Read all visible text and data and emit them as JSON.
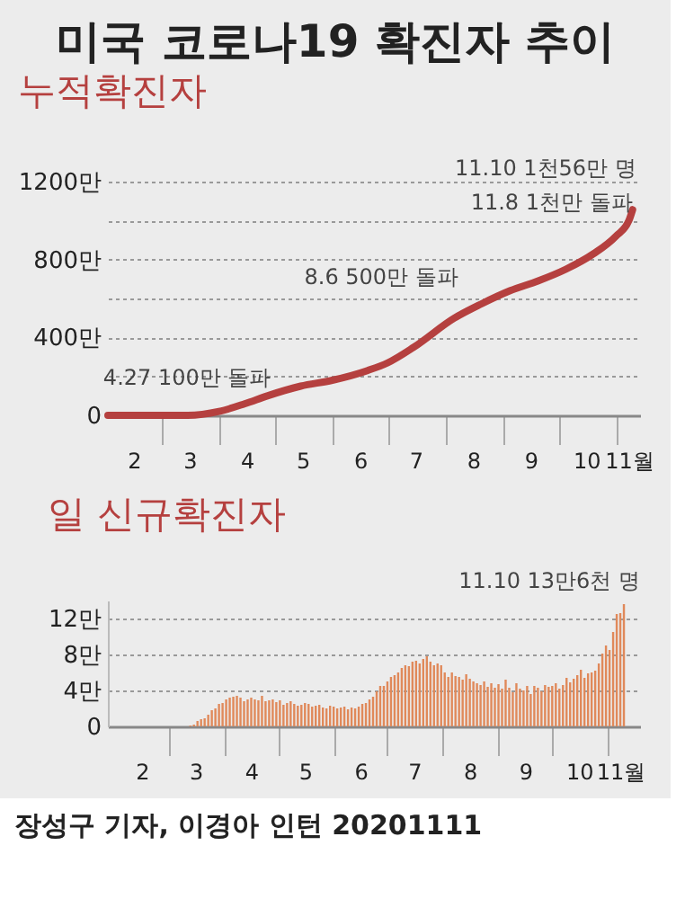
{
  "chart_data": [
    {
      "type": "line",
      "title": "미국 코로나19 확진자 추이",
      "subtitle": "누적확진자",
      "color": "#b5403f",
      "x": [
        "2020-02-01",
        "2020-03-01",
        "2020-03-15",
        "2020-04-01",
        "2020-04-15",
        "2020-04-27",
        "2020-05-15",
        "2020-06-01",
        "2020-06-20",
        "2020-07-01",
        "2020-07-15",
        "2020-08-06",
        "2020-08-20",
        "2020-09-05",
        "2020-09-20",
        "2020-10-05",
        "2020-10-20",
        "2020-11-01",
        "2020-11-08",
        "2020-11-10"
      ],
      "values": [
        0,
        0,
        0,
        20,
        60,
        100,
        150,
        180,
        230,
        270,
        350,
        500,
        570,
        640,
        690,
        750,
        830,
        920,
        1000,
        1056
      ],
      "xlim": [
        "2020-02-01",
        "2020-11-14"
      ],
      "xticks": [
        {
          "value": "2020-02-15",
          "label": "2"
        },
        {
          "value": "2020-03-01",
          "label": null
        },
        {
          "value": "2020-03-16",
          "label": "3"
        },
        {
          "value": "2020-04-01",
          "label": null
        },
        {
          "value": "2020-04-16",
          "label": "4"
        },
        {
          "value": "2020-05-01",
          "label": null
        },
        {
          "value": "2020-05-16",
          "label": "5"
        },
        {
          "value": "2020-06-01",
          "label": null
        },
        {
          "value": "2020-06-16",
          "label": "6"
        },
        {
          "value": "2020-07-01",
          "label": null
        },
        {
          "value": "2020-07-16",
          "label": "7"
        },
        {
          "value": "2020-08-01",
          "label": null
        },
        {
          "value": "2020-08-16",
          "label": "8"
        },
        {
          "value": "2020-09-01",
          "label": null
        },
        {
          "value": "2020-09-16",
          "label": "9"
        },
        {
          "value": "2020-10-01",
          "label": null
        },
        {
          "value": "2020-10-16",
          "label": "10"
        },
        {
          "value": "2020-11-01",
          "label": null
        },
        {
          "value": "2020-11-08",
          "label": "11월"
        }
      ],
      "ylim": [
        0,
        1200
      ],
      "yticks": [
        0,
        {
          "value": 200,
          "label": null
        },
        {
          "value": 400,
          "label": "400만"
        },
        {
          "value": 600,
          "label": null
        },
        {
          "value": 800,
          "label": "800만"
        },
        {
          "value": 1000,
          "label": null
        },
        {
          "value": 1200,
          "label": "1200만"
        }
      ],
      "grid": "y",
      "annotations": [
        {
          "text": "4.27 100만 돌파",
          "x": "2020-04-27",
          "y": 100
        },
        {
          "text": "8.6 500만 돌파",
          "x": "2020-08-06",
          "y": 500
        },
        {
          "text": "11.8 1천만 돌파",
          "x": "2020-11-08",
          "y": 1000
        },
        {
          "text": "11.10 1천56만 명",
          "x": "2020-11-10",
          "y": 1056
        }
      ]
    },
    {
      "type": "bar",
      "title": "일 신규확진자",
      "color": "#e0895a",
      "x": [
        "2020-03-01",
        "2020-03-03",
        "2020-03-05",
        "2020-03-07",
        "2020-03-09",
        "2020-03-11",
        "2020-03-13",
        "2020-03-15",
        "2020-03-17",
        "2020-03-19",
        "2020-03-21",
        "2020-03-23",
        "2020-03-25",
        "2020-03-27",
        "2020-03-29",
        "2020-03-31",
        "2020-04-02",
        "2020-04-04",
        "2020-04-06",
        "2020-04-08",
        "2020-04-10",
        "2020-04-12",
        "2020-04-14",
        "2020-04-16",
        "2020-04-18",
        "2020-04-20",
        "2020-04-22",
        "2020-04-24",
        "2020-04-26",
        "2020-04-28",
        "2020-04-30",
        "2020-05-02",
        "2020-05-04",
        "2020-05-06",
        "2020-05-08",
        "2020-05-10",
        "2020-05-12",
        "2020-05-14",
        "2020-05-16",
        "2020-05-18",
        "2020-05-20",
        "2020-05-22",
        "2020-05-24",
        "2020-05-26",
        "2020-05-28",
        "2020-05-30",
        "2020-06-01",
        "2020-06-03",
        "2020-06-05",
        "2020-06-07",
        "2020-06-09",
        "2020-06-11",
        "2020-06-13",
        "2020-06-15",
        "2020-06-17",
        "2020-06-19",
        "2020-06-21",
        "2020-06-23",
        "2020-06-25",
        "2020-06-27",
        "2020-06-29",
        "2020-07-01",
        "2020-07-03",
        "2020-07-05",
        "2020-07-07",
        "2020-07-09",
        "2020-07-11",
        "2020-07-13",
        "2020-07-15",
        "2020-07-17",
        "2020-07-19",
        "2020-07-21",
        "2020-07-23",
        "2020-07-25",
        "2020-07-27",
        "2020-07-29",
        "2020-07-31",
        "2020-08-02",
        "2020-08-04",
        "2020-08-06",
        "2020-08-08",
        "2020-08-10",
        "2020-08-12",
        "2020-08-14",
        "2020-08-16",
        "2020-08-18",
        "2020-08-20",
        "2020-08-22",
        "2020-08-24",
        "2020-08-26",
        "2020-08-28",
        "2020-08-30",
        "2020-09-01",
        "2020-09-03",
        "2020-09-05",
        "2020-09-07",
        "2020-09-09",
        "2020-09-11",
        "2020-09-13",
        "2020-09-15",
        "2020-09-17",
        "2020-09-19",
        "2020-09-21",
        "2020-09-23",
        "2020-09-25",
        "2020-09-27",
        "2020-09-29",
        "2020-10-01",
        "2020-10-03",
        "2020-10-05",
        "2020-10-07",
        "2020-10-09",
        "2020-10-11",
        "2020-10-13",
        "2020-10-15",
        "2020-10-17",
        "2020-10-19",
        "2020-10-21",
        "2020-10-23",
        "2020-10-25",
        "2020-10-27",
        "2020-10-29",
        "2020-10-31",
        "2020-11-02",
        "2020-11-04",
        "2020-11-06",
        "2020-11-08",
        "2020-11-10"
      ],
      "values": [
        0,
        0,
        0,
        0,
        0,
        0,
        0.1,
        0.2,
        0.6,
        0.8,
        0.9,
        1.3,
        1.8,
        2.0,
        2.5,
        2.6,
        3.0,
        3.2,
        3.3,
        3.4,
        3.2,
        2.8,
        3.0,
        3.2,
        3.0,
        2.9,
        3.4,
        2.8,
        2.9,
        3.0,
        2.7,
        2.9,
        2.4,
        2.6,
        2.8,
        2.5,
        2.3,
        2.4,
        2.6,
        2.5,
        2.2,
        2.3,
        2.4,
        2.1,
        2.0,
        2.3,
        2.2,
        2.0,
        2.1,
        2.2,
        1.9,
        2.1,
        2.0,
        2.2,
        2.5,
        2.6,
        3.0,
        3.3,
        3.9,
        4.5,
        4.5,
        5.0,
        5.5,
        5.7,
        6.0,
        6.5,
        6.8,
        6.7,
        7.2,
        7.3,
        7.0,
        7.5,
        7.8,
        7.2,
        6.8,
        7.0,
        6.8,
        6.0,
        5.5,
        6.0,
        5.6,
        5.5,
        5.2,
        5.8,
        5.3,
        5.0,
        4.8,
        4.6,
        5.0,
        4.4,
        4.8,
        4.3,
        4.7,
        4.2,
        5.2,
        4.3,
        3.8,
        4.8,
        4.2,
        4.0,
        4.5,
        3.6,
        4.5,
        4.3,
        3.9,
        4.6,
        4.4,
        4.5,
        4.8,
        4.2,
        4.6,
        5.4,
        4.9,
        5.3,
        5.7,
        6.3,
        5.4,
        5.9,
        6.0,
        6.2,
        7.0,
        8.1,
        9.0,
        8.5,
        10.5,
        12.5,
        12.6,
        13.6
      ],
      "xlim": [
        "2020-02-01",
        "2020-11-14"
      ],
      "xticks": [
        {
          "value": "2020-02-15",
          "label": "2"
        },
        {
          "value": "2020-03-01",
          "label": null
        },
        {
          "value": "2020-03-16",
          "label": "3"
        },
        {
          "value": "2020-04-01",
          "label": null
        },
        {
          "value": "2020-04-16",
          "label": "4"
        },
        {
          "value": "2020-05-01",
          "label": null
        },
        {
          "value": "2020-05-16",
          "label": "5"
        },
        {
          "value": "2020-06-01",
          "label": null
        },
        {
          "value": "2020-06-16",
          "label": "6"
        },
        {
          "value": "2020-07-01",
          "label": null
        },
        {
          "value": "2020-07-16",
          "label": "7"
        },
        {
          "value": "2020-08-01",
          "label": null
        },
        {
          "value": "2020-08-16",
          "label": "8"
        },
        {
          "value": "2020-09-01",
          "label": null
        },
        {
          "value": "2020-09-16",
          "label": "9"
        },
        {
          "value": "2020-10-01",
          "label": null
        },
        {
          "value": "2020-10-16",
          "label": "10"
        },
        {
          "value": "2020-11-01",
          "label": null
        },
        {
          "value": "2020-11-08",
          "label": "11월"
        }
      ],
      "ylim": [
        0,
        14
      ],
      "yticks": [
        0,
        {
          "value": 4,
          "label": "4만"
        },
        {
          "value": 8,
          "label": "8만"
        },
        {
          "value": 12,
          "label": "12만"
        }
      ],
      "grid": "y",
      "annotations": [
        "11.10 13만6천 명",
        "장성구 기자, 이경아 인턴  20201111"
      ]
    }
  ]
}
